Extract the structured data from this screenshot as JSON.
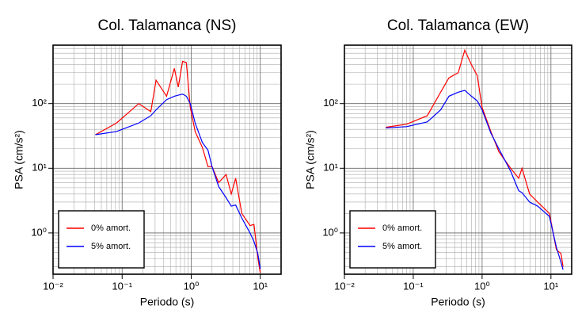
{
  "chart_data": [
    {
      "type": "line",
      "title": "Col. Talamanca (NS)",
      "x_label": "Periodo (s)",
      "y_label": "PSA (cm/s²)",
      "xscale": "log",
      "yscale": "log",
      "grid": true,
      "legend": "lower left",
      "xlim": [
        0.01,
        20
      ],
      "ylim": [
        0.23,
        800
      ],
      "xticks": [
        {
          "value": 0.01,
          "label": "10⁻²"
        },
        {
          "value": 0.1,
          "label": "10⁻¹"
        },
        {
          "value": 1,
          "label": "10⁰"
        },
        {
          "value": 10,
          "label": "10¹"
        }
      ],
      "yticks": [
        {
          "value": 1,
          "label": "10⁰"
        },
        {
          "value": 10,
          "label": "10¹"
        },
        {
          "value": 100,
          "label": "10²"
        }
      ],
      "x": [
        0.041,
        0.083,
        0.174,
        0.26,
        0.31,
        0.44,
        0.57,
        0.65,
        0.75,
        0.85,
        0.97,
        1.14,
        1.45,
        1.75,
        2.0,
        2.5,
        3.2,
        3.8,
        4.4,
        5.4,
        7.1,
        8.1,
        9.2,
        10
      ],
      "series": [
        {
          "name": "0% amort.",
          "color": "#ff0000",
          "values": [
            33,
            50,
            100,
            75,
            230,
            130,
            350,
            180,
            450,
            430,
            87,
            37,
            21,
            10.6,
            10.6,
            6,
            8,
            4,
            7,
            2.0,
            1.3,
            1.35,
            0.42,
            0.24
          ]
        },
        {
          "name": "5% amort.",
          "color": "#0000ff",
          "values": [
            33,
            37,
            50,
            65,
            80,
            115,
            130,
            135,
            140,
            130,
            100,
            50,
            25,
            19,
            10.6,
            5.2,
            3.5,
            2.6,
            2.7,
            1.7,
            1.0,
            0.74,
            0.48,
            0.28
          ]
        }
      ]
    },
    {
      "type": "line",
      "title": "Col. Talamanca (EW)",
      "x_label": "Periodo (s)",
      "y_label": "PSA (cm/s²)",
      "xscale": "log",
      "yscale": "log",
      "grid": true,
      "legend": "lower left",
      "xlim": [
        0.01,
        20
      ],
      "ylim": [
        0.23,
        800
      ],
      "xticks": [
        {
          "value": 0.01,
          "label": "10⁻²"
        },
        {
          "value": 0.1,
          "label": "10⁻¹"
        },
        {
          "value": 1,
          "label": "10⁰"
        },
        {
          "value": 10,
          "label": "10¹"
        }
      ],
      "yticks": [
        {
          "value": 1,
          "label": "10⁰"
        },
        {
          "value": 10,
          "label": "10¹"
        },
        {
          "value": 100,
          "label": "10²"
        }
      ],
      "x": [
        0.04,
        0.08,
        0.16,
        0.25,
        0.33,
        0.45,
        0.56,
        0.7,
        0.85,
        1.0,
        1.34,
        1.75,
        2.6,
        3.4,
        3.8,
        4.9,
        6.4,
        9.5,
        12,
        14,
        15
      ],
      "series": [
        {
          "name": "0% amort.",
          "color": "#ff0000",
          "values": [
            43,
            48,
            65,
            150,
            250,
            300,
            670,
            400,
            270,
            87,
            37,
            18,
            10,
            7,
            10,
            4,
            3,
            2,
            0.55,
            0.48,
            0.3
          ]
        },
        {
          "name": "5% amort.",
          "color": "#0000ff",
          "values": [
            42,
            44,
            52,
            80,
            130,
            150,
            160,
            130,
            110,
            80,
            35,
            20,
            9,
            4.5,
            4.2,
            3,
            2.6,
            1.8,
            0.6,
            0.35,
            0.27
          ]
        }
      ]
    }
  ]
}
